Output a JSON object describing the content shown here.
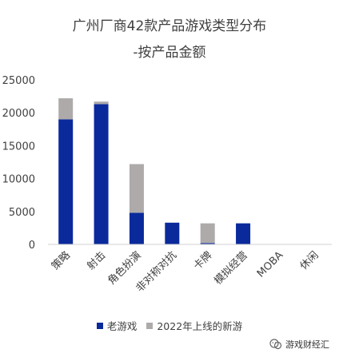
{
  "chart_data": {
    "type": "bar",
    "stacked": true,
    "title_lines": [
      "广州厂商42款产品游戏类型分布",
      "-按产品金额"
    ],
    "categories": [
      "策略",
      "射击",
      "角色扮演",
      "非对称对抗",
      "卡牌",
      "模拟经营",
      "MOBA",
      "休闲"
    ],
    "series": [
      {
        "name": "老游戏",
        "color": "#0a2a9c",
        "values": [
          19000,
          21300,
          4800,
          3300,
          200,
          3200,
          0,
          0
        ]
      },
      {
        "name": "2022年上线的新游",
        "color": "#aeaaaa",
        "values": [
          3200,
          400,
          7400,
          0,
          3000,
          0,
          0,
          0
        ]
      }
    ],
    "ylim": [
      0,
      25000
    ],
    "yticks": [
      0,
      5000,
      10000,
      15000,
      20000,
      25000
    ],
    "grid": false,
    "legend_position": "bottom"
  },
  "watermark": {
    "text": "游戏财经汇",
    "icon": "wechat-official-account-icon"
  }
}
